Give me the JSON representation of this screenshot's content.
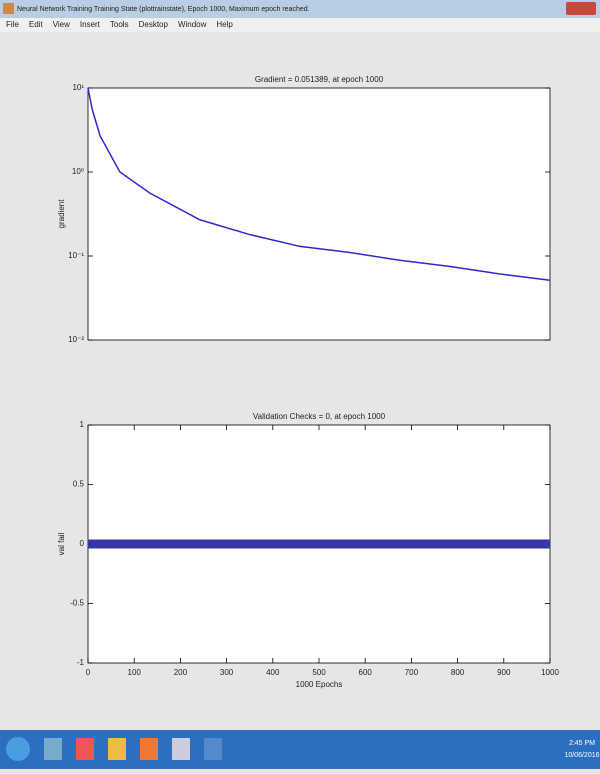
{
  "window": {
    "title": "Neural Network Training Training State (plottrainstate), Epoch 1000, Maximum epoch reached."
  },
  "menu": [
    "File",
    "Edit",
    "View",
    "Insert",
    "Tools",
    "Desktop",
    "Window",
    "Help"
  ],
  "taskbar": {
    "time": "2:45 PM",
    "date": "10/06/2016"
  },
  "chart_data": [
    {
      "type": "line",
      "title": "Gradient = 0.051389, at epoch 1000",
      "y_label": "gradient",
      "log_y": true,
      "x": [
        0,
        9,
        26,
        69,
        134,
        242,
        350,
        459,
        567,
        675,
        784,
        892,
        1000
      ],
      "series": [
        {
          "name": "gradient",
          "color": "#2a2ad0",
          "values": [
            10,
            5.6,
            2.7,
            1.0,
            0.56,
            0.27,
            0.18,
            0.13,
            0.11,
            0.089,
            0.075,
            0.061,
            0.051389
          ]
        }
      ],
      "xlim": [
        0,
        1000
      ],
      "ylim": [
        0.01,
        10
      ],
      "yticks": [
        {
          "value": 0.01,
          "label": "10⁻²"
        },
        {
          "value": 0.1,
          "label": "10⁻¹"
        },
        {
          "value": 1,
          "label": "10⁰"
        },
        {
          "value": 10,
          "label": "10¹"
        }
      ]
    },
    {
      "type": "line",
      "title": "Validation Checks = 0, at epoch 1000",
      "y_label": "val fail",
      "x_label": "1000 Epochs",
      "log_y": false,
      "x": [
        0,
        1000
      ],
      "series": [
        {
          "name": "val fail",
          "color": "#3636a8",
          "values": [
            0,
            0
          ]
        }
      ],
      "xlim": [
        0,
        1000
      ],
      "ylim": [
        -1,
        1
      ],
      "xticks": [
        0,
        100,
        200,
        300,
        400,
        500,
        600,
        700,
        800,
        900,
        1000
      ],
      "yticks": [
        -1,
        -0.5,
        0,
        0.5,
        1
      ]
    }
  ]
}
